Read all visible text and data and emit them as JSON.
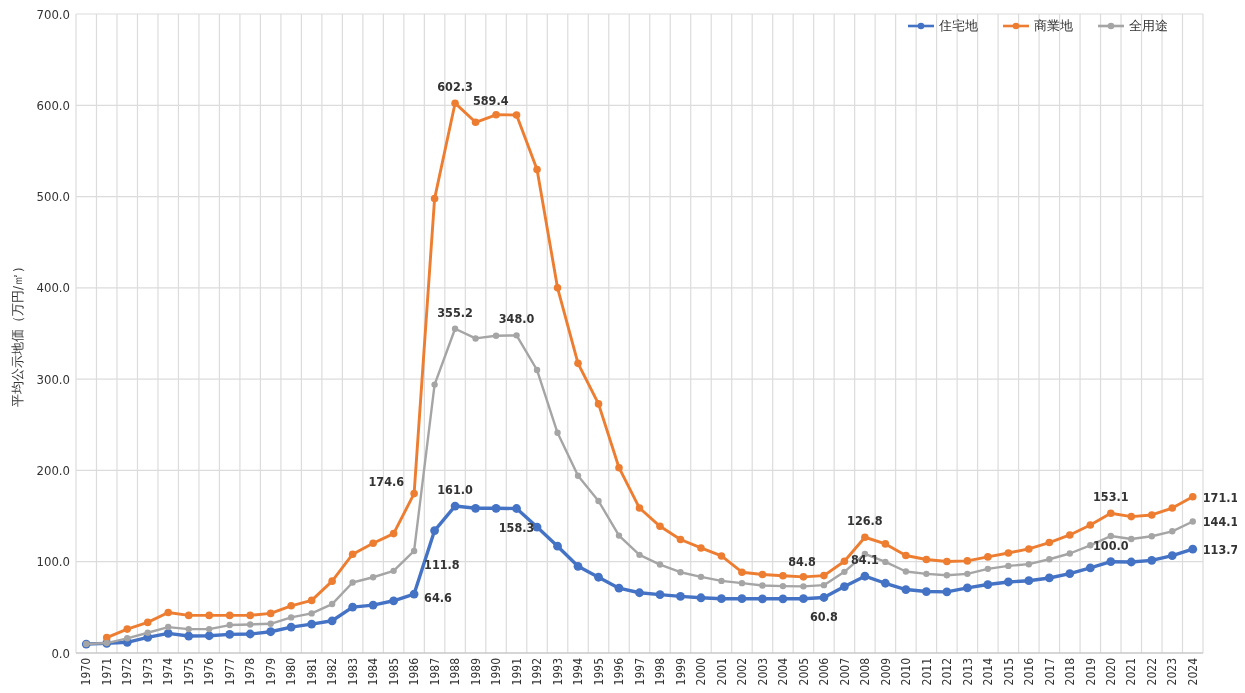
{
  "chart_data": {
    "type": "line",
    "ylabel": "平均公示地価（万円/㎡）",
    "categories": [
      "1970",
      "1971",
      "1972",
      "1973",
      "1974",
      "1975",
      "1976",
      "1977",
      "1978",
      "1979",
      "1980",
      "1981",
      "1982",
      "1983",
      "1984",
      "1985",
      "1986",
      "1987",
      "1988",
      "1989",
      "1990",
      "1991",
      "1992",
      "1993",
      "1994",
      "1995",
      "1996",
      "1997",
      "1998",
      "1999",
      "2000",
      "2001",
      "2002",
      "2003",
      "2004",
      "2005",
      "2006",
      "2007",
      "2008",
      "2009",
      "2010",
      "2011",
      "2012",
      "2013",
      "2014",
      "2015",
      "2016",
      "2017",
      "2018",
      "2019",
      "2020",
      "2021",
      "2022",
      "2023",
      "2024"
    ],
    "ylim": [
      0,
      700
    ],
    "yticks": [
      {
        "value": 0,
        "label": "0.0"
      },
      {
        "value": 100,
        "label": "100.0"
      },
      {
        "value": 200,
        "label": "200.0"
      },
      {
        "value": 300,
        "label": "300.0"
      },
      {
        "value": 400,
        "label": "400.0"
      },
      {
        "value": 500,
        "label": "500.0"
      },
      {
        "value": 600,
        "label": "600.0"
      },
      {
        "value": 700,
        "label": "700.0"
      }
    ],
    "grid": true,
    "legend": "top right",
    "marker": "circle",
    "line_style": "solid",
    "series": [
      {
        "name": "住宅地",
        "color": "#4472c4",
        "values": [
          9.8,
          10.6,
          11.7,
          17.1,
          21.5,
          18.6,
          18.9,
          20.4,
          20.8,
          23.3,
          28.4,
          31.7,
          35.3,
          50.3,
          52.5,
          57.2,
          64.6,
          134.1,
          161.0,
          158.5,
          158.5,
          158.3,
          138,
          117,
          95,
          83,
          71,
          66,
          64,
          62,
          60.5,
          59.5,
          59.5,
          59.4,
          59.4,
          59.5,
          60.8,
          72.8,
          84.1,
          76.4,
          69.5,
          67.3,
          67,
          71.3,
          75,
          77.8,
          79.2,
          82.2,
          87,
          93.2,
          100.0,
          99.7,
          101.5,
          106.7,
          113.7
        ],
        "value_labels": [
          null,
          null,
          null,
          null,
          null,
          null,
          null,
          null,
          null,
          null,
          null,
          null,
          null,
          null,
          null,
          null,
          "64.6",
          null,
          "161.0",
          null,
          null,
          "158.3",
          null,
          null,
          null,
          null,
          null,
          null,
          null,
          null,
          null,
          null,
          null,
          null,
          null,
          null,
          "60.8",
          null,
          "84.1",
          null,
          null,
          null,
          null,
          null,
          null,
          null,
          null,
          null,
          null,
          null,
          "100.0",
          null,
          null,
          null,
          "113.7"
        ]
      },
      {
        "name": "商業地",
        "color": "#ed7d31",
        "values": [
          null,
          16.8,
          26.2,
          33.5,
          44.4,
          41.2,
          41.2,
          41.2,
          41.2,
          43.4,
          51.7,
          57.6,
          78.7,
          108.2,
          120.2,
          130.8,
          174.6,
          497.8,
          602.3,
          581.4,
          589.6,
          589.4,
          529.7,
          400,
          317.3,
          272.9,
          203,
          158.8,
          138.8,
          124.3,
          115.1,
          106.3,
          88.5,
          86,
          84.7,
          83.4,
          84.8,
          100.5,
          126.8,
          119.5,
          106.8,
          102.4,
          100.2,
          100.9,
          105.3,
          109.6,
          114,
          121,
          129.3,
          140.2,
          153.1,
          149.4,
          151.2,
          158.8,
          171.1
        ],
        "value_labels": [
          null,
          null,
          null,
          null,
          null,
          null,
          null,
          null,
          null,
          null,
          null,
          null,
          null,
          null,
          null,
          null,
          "174.6",
          null,
          "602.3",
          null,
          null,
          "589.4",
          null,
          null,
          null,
          null,
          null,
          null,
          null,
          null,
          null,
          null,
          null,
          null,
          null,
          null,
          "84.8",
          null,
          "126.8",
          null,
          null,
          null,
          null,
          null,
          null,
          null,
          null,
          null,
          null,
          null,
          "153.1",
          null,
          null,
          null,
          "171.1"
        ]
      },
      {
        "name": "全用途",
        "color": "#a5a5a5",
        "values": [
          9.8,
          10.9,
          16.1,
          22.2,
          28.4,
          26.2,
          26.2,
          30.6,
          31.3,
          32,
          39,
          43.4,
          53.6,
          77.2,
          83,
          90,
          111.8,
          294,
          355.2,
          344.6,
          347.5,
          348.0,
          310,
          241.2,
          194.2,
          166.5,
          128.6,
          107.5,
          96.9,
          88.5,
          83.4,
          79,
          76.5,
          74,
          73.3,
          73,
          74.3,
          88.9,
          108.5,
          99.8,
          89.3,
          86.7,
          85.2,
          86.7,
          92.2,
          95.4,
          97.3,
          102.7,
          109,
          118,
          128.2,
          124.9,
          127.9,
          133.3,
          144.1
        ],
        "value_labels": [
          null,
          null,
          null,
          null,
          null,
          null,
          null,
          null,
          null,
          null,
          null,
          null,
          null,
          null,
          null,
          null,
          "111.8",
          null,
          "355.2",
          null,
          null,
          "348.0",
          null,
          null,
          null,
          null,
          null,
          null,
          null,
          null,
          null,
          null,
          null,
          null,
          null,
          null,
          null,
          null,
          null,
          null,
          null,
          null,
          null,
          null,
          null,
          null,
          null,
          null,
          null,
          null,
          null,
          null,
          null,
          null,
          "144.1"
        ]
      }
    ]
  }
}
